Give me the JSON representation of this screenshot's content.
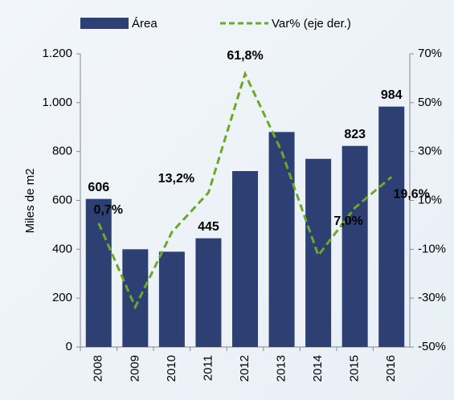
{
  "chart_data": {
    "type": "bar_line",
    "categories": [
      "2008",
      "2009",
      "2010",
      "2011",
      "2012",
      "2013",
      "2014",
      "2015",
      "2016"
    ],
    "series": [
      {
        "name": "Área",
        "color": "#2e3f73",
        "type": "bar",
        "values": [
          606,
          400,
          390,
          445,
          720,
          880,
          770,
          823,
          984
        ],
        "value_labels": [
          "606",
          null,
          null,
          "445",
          null,
          null,
          null,
          "823",
          "984"
        ]
      },
      {
        "name": "Var% (eje der.)",
        "color": "#6aaa2a",
        "type": "line",
        "axis": "y2",
        "dashed": true,
        "values": [
          0.7,
          -33.6,
          -3,
          13.2,
          61.8,
          30,
          -12.5,
          7.0,
          19.6
        ],
        "value_labels": [
          "0,7%",
          null,
          null,
          "13,2%",
          "61,8%",
          null,
          null,
          "7,0%",
          "19,6%"
        ]
      }
    ],
    "ylabel": "Miles de m2",
    "ylim": [
      0,
      1200
    ],
    "yticks": [
      0,
      200,
      400,
      600,
      800,
      {
        "value": 1000,
        "label": "1.000"
      },
      {
        "value": 1200,
        "label": "1.200"
      }
    ],
    "y2lim": [
      -50,
      70
    ],
    "y2ticks": [
      {
        "value": -50,
        "label": "-50%"
      },
      {
        "value": -30,
        "label": "-30%"
      },
      {
        "value": -10,
        "label": "-10%"
      },
      {
        "value": 10,
        "label": "10%"
      },
      {
        "value": 30,
        "label": "30%"
      },
      {
        "value": 50,
        "label": "50%"
      },
      {
        "value": 70,
        "label": "70%"
      }
    ],
    "legend": "top"
  }
}
